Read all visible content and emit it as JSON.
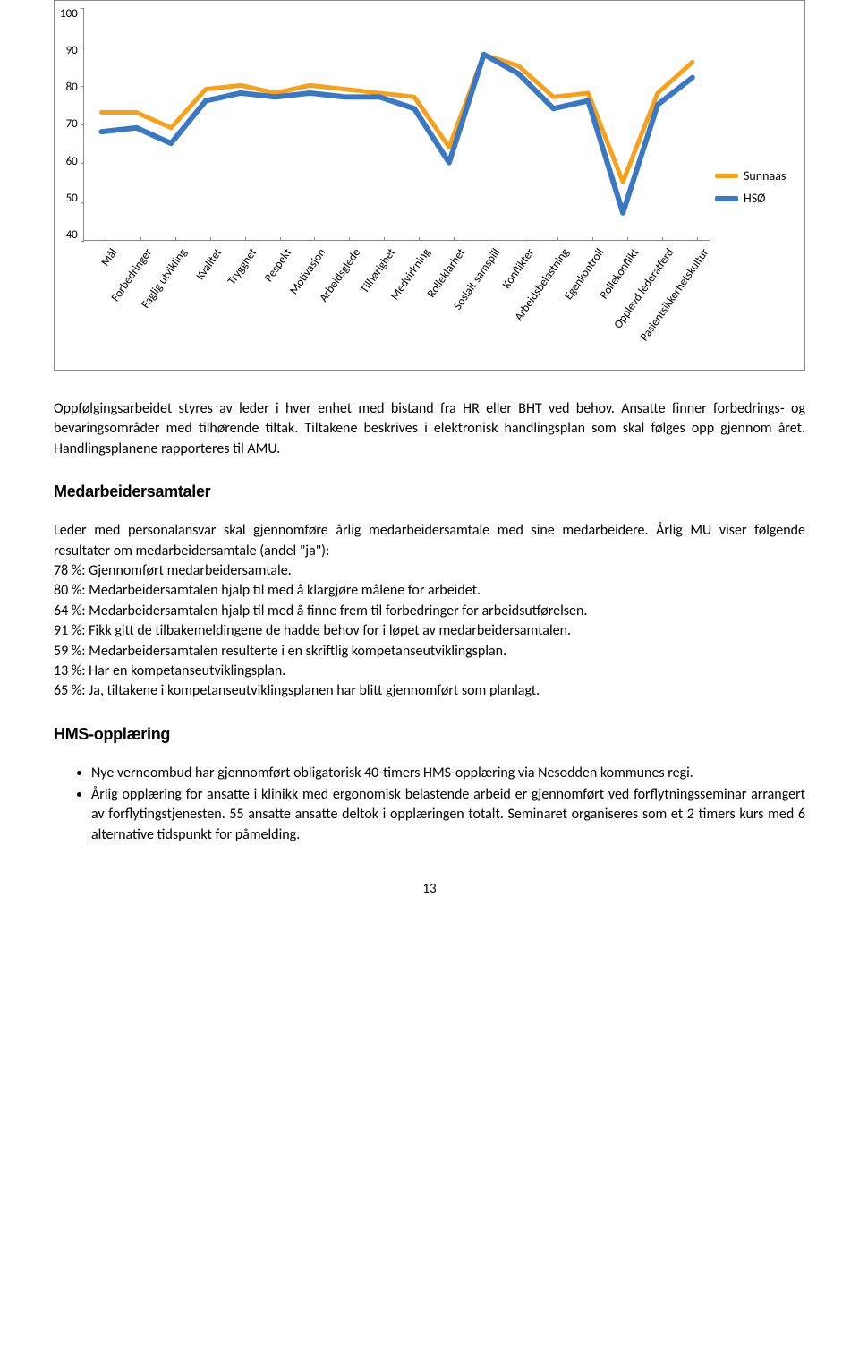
{
  "chart": {
    "type": "line",
    "ylim": [
      40,
      100
    ],
    "ytick_step": 10,
    "yticks": [
      40,
      50,
      60,
      70,
      80,
      90,
      100
    ],
    "categories": [
      "Mål",
      "Forbedringer",
      "Faglig utvikling",
      "Kvalitet",
      "Trygghet",
      "Respekt",
      "Motivasjon",
      "Arbeidsglede",
      "Tilhørighet",
      "Medvirkning",
      "Rolleklarhet",
      "Sosialt samspill",
      "Konflikter",
      "Arbeidsbelastning",
      "Egenkontroll",
      "Rollekonflikt",
      "Opplevd lederatferd",
      "Pasientsikkerhetskultur"
    ],
    "series": [
      {
        "name": "Sunnaas",
        "color": "#f7a11a",
        "line_width": 5,
        "values": [
          73,
          73,
          69,
          79,
          80,
          78,
          80,
          79,
          78,
          77,
          64,
          88,
          85,
          77,
          78,
          55,
          78,
          86
        ]
      },
      {
        "name": "HSØ",
        "color": "#3b78c4",
        "line_width": 6,
        "values": [
          68,
          69,
          65,
          76,
          78,
          77,
          78,
          77,
          77,
          74,
          60,
          88,
          83,
          74,
          76,
          47,
          75,
          82
        ]
      }
    ],
    "background_color": "#ffffff",
    "grid_color": "#d9d9d9",
    "axis_color": "#888888",
    "label_fontsize": 13
  },
  "para1": "Oppfølgingsarbeidet styres av leder i hver enhet med bistand fra HR eller BHT ved behov. Ansatte finner forbedrings- og bevaringsområder med tilhørende tiltak. Tiltakene beskrives i elektronisk handlingsplan som skal følges opp gjennom året. Handlingsplanene rapporteres til AMU.",
  "heading_medarb": "Medarbeidersamtaler",
  "medarb_lines": [
    "Leder med personalansvar skal gjennomføre årlig medarbeidersamtale med sine medarbeidere. Årlig MU viser følgende resultater om medarbeidersamtale (andel \"ja\"):",
    "78 %: Gjennomført medarbeidersamtale.",
    "80 %: Medarbeidersamtalen hjalp til med å klargjøre målene for arbeidet.",
    "64 %: Medarbeidersamtalen hjalp til med å finne frem til forbedringer for arbeidsutførelsen.",
    "91 %: Fikk gitt de tilbakemeldingene de hadde behov for i løpet av medarbeidersamtalen.",
    "59 %: Medarbeidersamtalen resulterte i en skriftlig kompetanseutviklingsplan.",
    "13 %: Har en kompetanseutviklingsplan.",
    "65 %: Ja, tiltakene i kompetanseutviklingsplanen har blitt gjennomført som planlagt."
  ],
  "heading_hms": "HMS-opplæring",
  "hms_bullets": [
    "Nye verneombud har gjennomført obligatorisk 40-timers HMS-opplæring via Nesodden kommunes regi.",
    "Årlig opplæring for ansatte i klinikk med ergonomisk belastende arbeid er gjennomført ved forflytningsseminar arrangert av forflytingstjenesten. 55 ansatte ansatte deltok i opplæringen totalt. Seminaret organiseres som et 2 timers kurs med 6 alternative tidspunkt for påmelding."
  ],
  "page_number": "13"
}
